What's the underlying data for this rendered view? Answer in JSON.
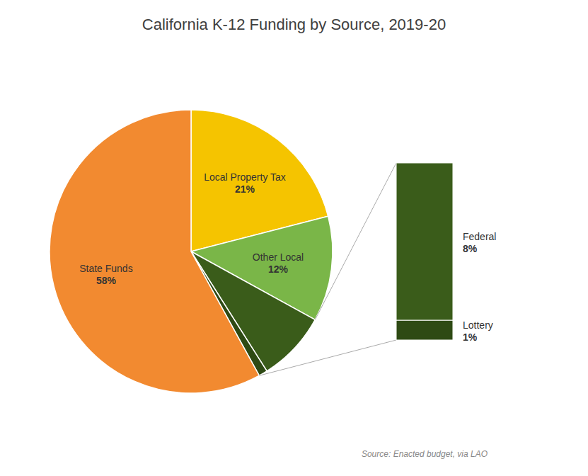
{
  "chart_data": {
    "type": "pie",
    "title": "California K-12 Funding by Source, 2019-20",
    "annotations": [
      "Source: Enacted budget, via LAO"
    ],
    "categories": [
      "Local Property Tax",
      "Other Local",
      "Federal",
      "Lottery",
      "State Funds"
    ],
    "values": [
      21,
      12,
      8,
      1,
      58
    ],
    "value_labels": [
      "21%",
      "12%",
      "8%",
      "1%",
      "58%"
    ],
    "colors": [
      "#F5C400",
      "#7AB648",
      "#3A5C1A",
      "#2E4A14",
      "#F28A30"
    ],
    "data_labels": true
  }
}
